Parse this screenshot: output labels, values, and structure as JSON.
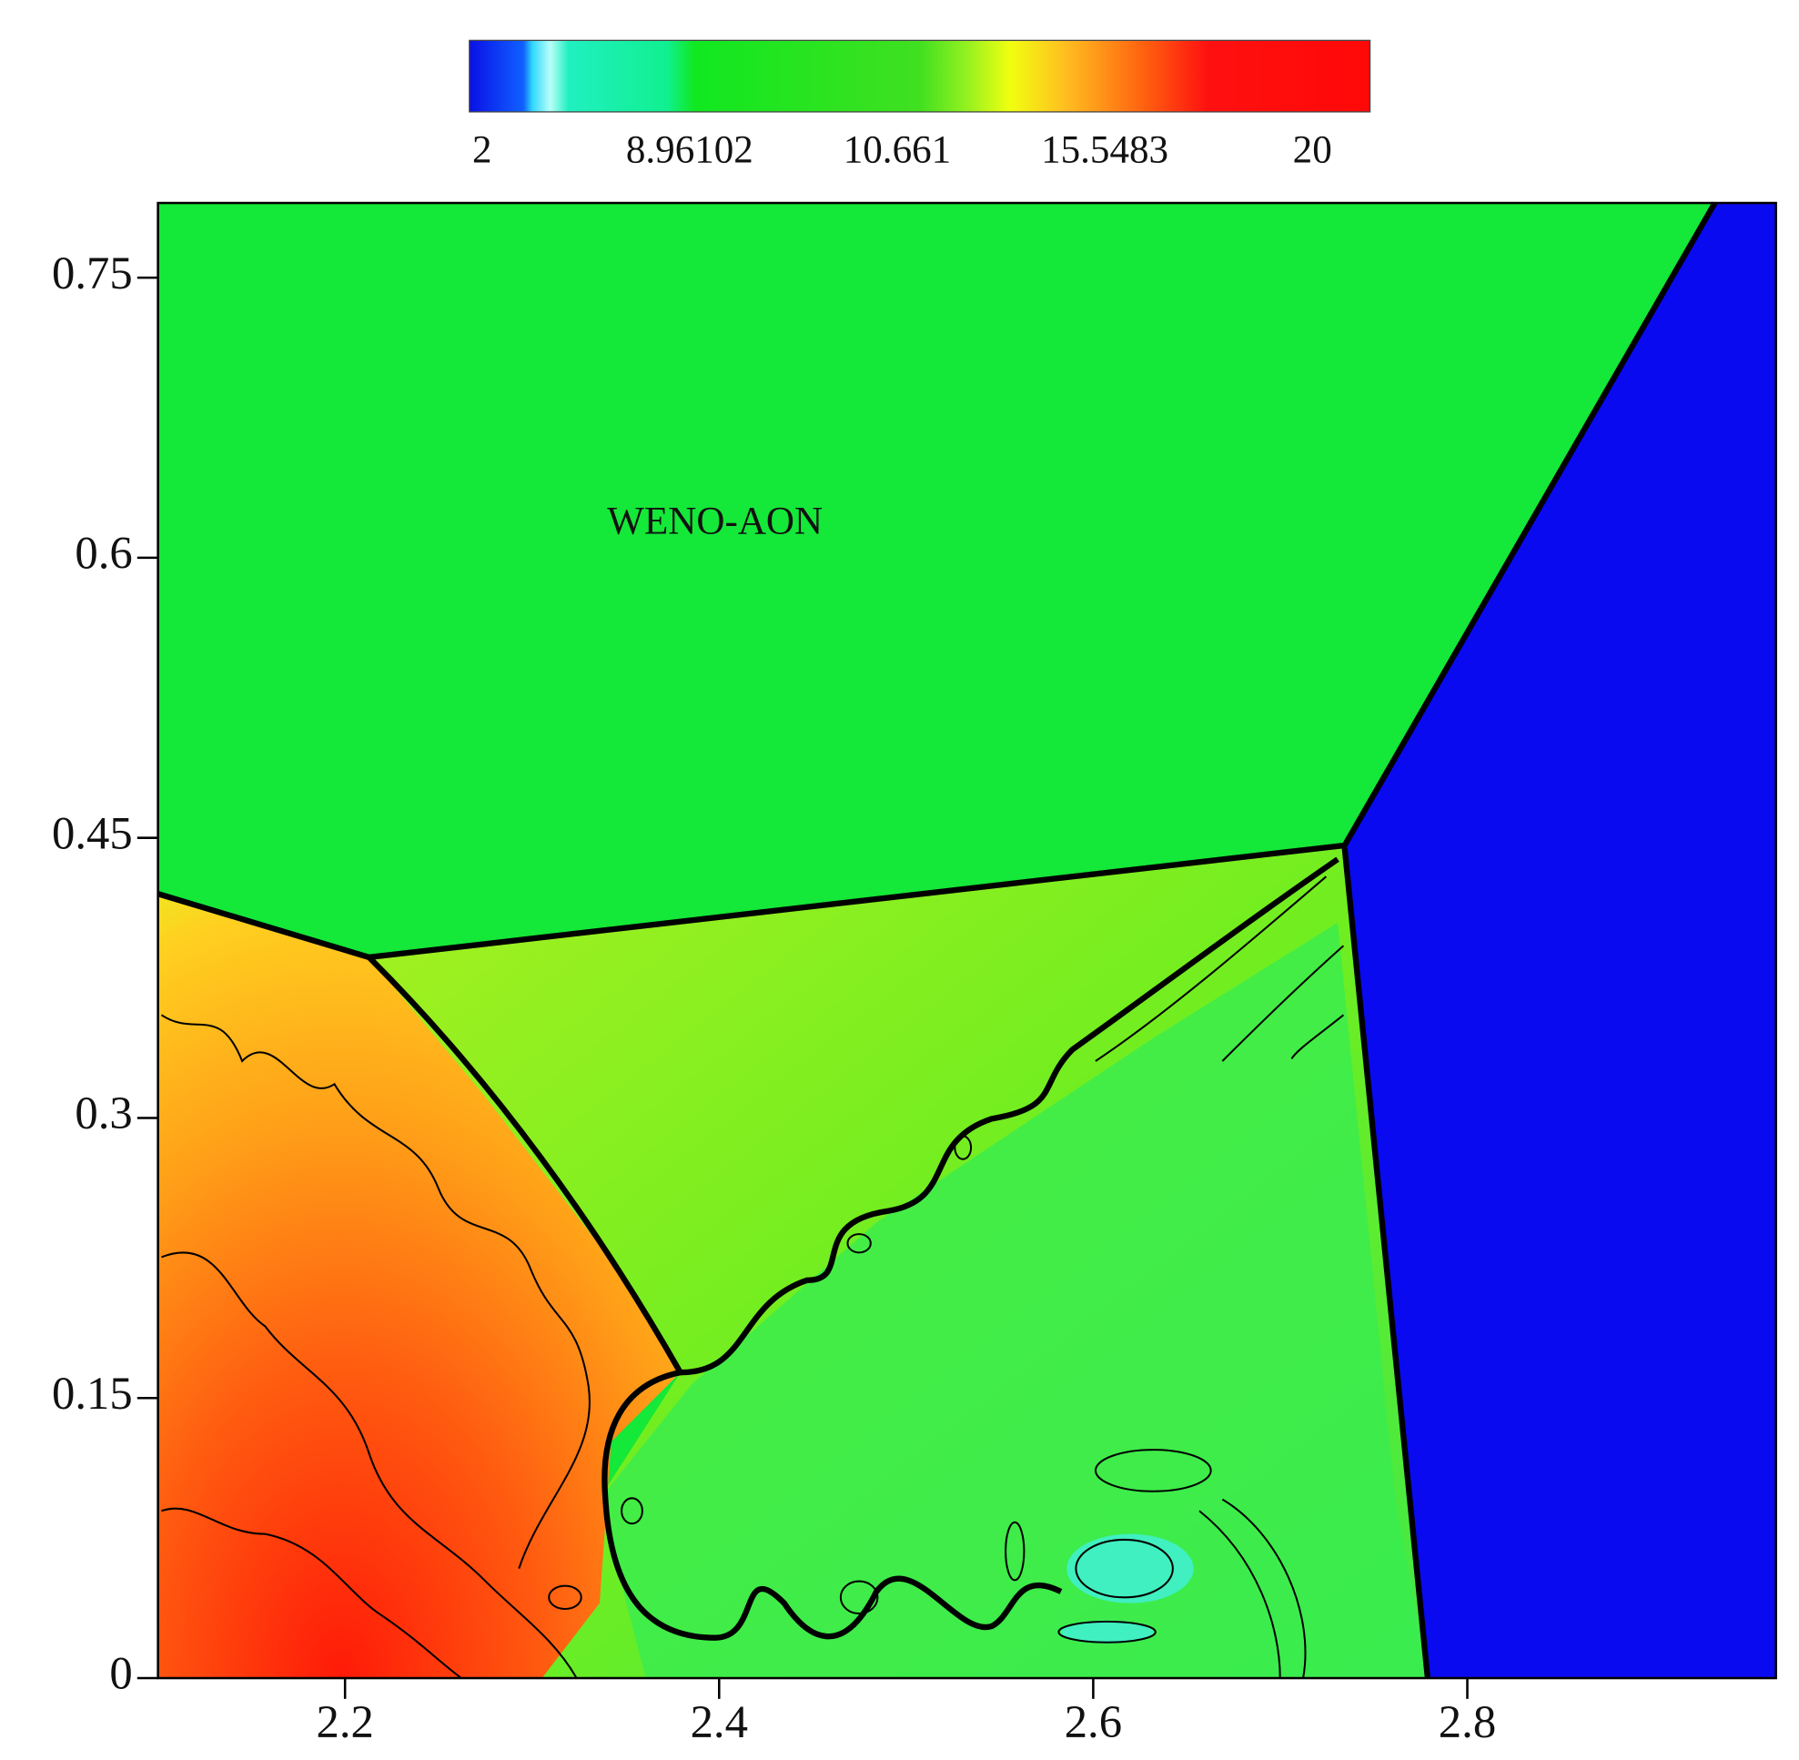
{
  "chart_data": {
    "type": "contour",
    "annotation": "WENO-AON",
    "colorbar": {
      "ticks": [
        2,
        8.96102,
        10.661,
        15.5483,
        20
      ]
    },
    "xlim": [
      2.1,
      2.965
    ],
    "ylim": [
      0,
      0.79
    ],
    "xticks": [
      2.2,
      2.4,
      2.6,
      2.8
    ],
    "yticks": [
      0,
      0.15,
      0.3,
      0.45,
      0.6,
      0.75
    ]
  }
}
